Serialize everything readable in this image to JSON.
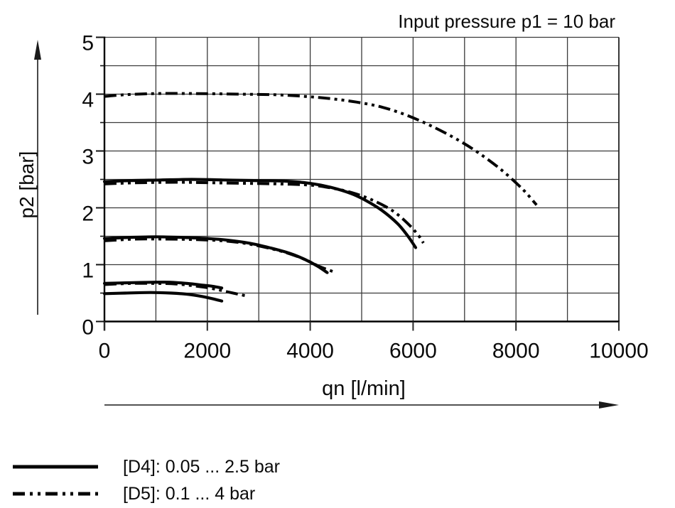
{
  "chart_data": {
    "type": "line",
    "title": "Input pressure p1 = 10 bar",
    "xlabel": "qn [l/min]",
    "ylabel": "p2 [bar]",
    "xlim": [
      0,
      10000
    ],
    "ylim": [
      0,
      5
    ],
    "x_major_ticks": [
      0,
      2000,
      4000,
      6000,
      8000,
      10000
    ],
    "x_minor_step": 1000,
    "y_major_ticks": [
      0,
      1,
      2,
      3,
      4,
      5
    ],
    "y_minor_step": 0.5,
    "grid": "on, every 1000 l/min and 0.5 bar",
    "legend_position": "below-left",
    "line_color": "#050505",
    "series": [
      {
        "name": "D4 set 2.5 bar",
        "group": "D4",
        "style": "solid",
        "points": [
          [
            0,
            2.46
          ],
          [
            500,
            2.48
          ],
          [
            1100,
            2.49
          ],
          [
            1700,
            2.5
          ],
          [
            2300,
            2.49
          ],
          [
            2900,
            2.48
          ],
          [
            3500,
            2.47
          ],
          [
            4000,
            2.43
          ],
          [
            4400,
            2.36
          ],
          [
            4800,
            2.25
          ],
          [
            5100,
            2.12
          ],
          [
            5400,
            1.95
          ],
          [
            5700,
            1.72
          ],
          [
            5900,
            1.5
          ],
          [
            6050,
            1.3
          ]
        ]
      },
      {
        "name": "D4 set 1.45 bar",
        "group": "D4",
        "style": "solid",
        "points": [
          [
            0,
            1.46
          ],
          [
            500,
            1.48
          ],
          [
            1000,
            1.49
          ],
          [
            1500,
            1.48
          ],
          [
            2000,
            1.46
          ],
          [
            2400,
            1.43
          ],
          [
            2800,
            1.38
          ],
          [
            3200,
            1.3
          ],
          [
            3600,
            1.2
          ],
          [
            3900,
            1.09
          ],
          [
            4150,
            0.97
          ],
          [
            4330,
            0.86
          ]
        ]
      },
      {
        "name": "D4 set 0.68 bar",
        "group": "D4",
        "style": "solid",
        "points": [
          [
            0,
            0.67
          ],
          [
            400,
            0.68
          ],
          [
            900,
            0.69
          ],
          [
            1300,
            0.69
          ],
          [
            1600,
            0.67
          ],
          [
            1900,
            0.64
          ],
          [
            2100,
            0.62
          ],
          [
            2280,
            0.59
          ]
        ]
      },
      {
        "name": "D4 set 0.5 bar",
        "group": "D4",
        "style": "solid",
        "points": [
          [
            0,
            0.49
          ],
          [
            400,
            0.5
          ],
          [
            900,
            0.51
          ],
          [
            1300,
            0.5
          ],
          [
            1600,
            0.48
          ],
          [
            1900,
            0.44
          ],
          [
            2150,
            0.39
          ],
          [
            2280,
            0.36
          ]
        ]
      },
      {
        "name": "D5 set 4 bar",
        "group": "D5",
        "style": "dashdotdot",
        "points": [
          [
            0,
            3.96
          ],
          [
            400,
            3.99
          ],
          [
            1000,
            4.01
          ],
          [
            1800,
            4.01
          ],
          [
            2600,
            4.0
          ],
          [
            3300,
            3.99
          ],
          [
            3900,
            3.96
          ],
          [
            4400,
            3.92
          ],
          [
            4900,
            3.86
          ],
          [
            5400,
            3.77
          ],
          [
            5900,
            3.62
          ],
          [
            6400,
            3.42
          ],
          [
            6900,
            3.18
          ],
          [
            7300,
            2.95
          ],
          [
            7700,
            2.68
          ],
          [
            8000,
            2.44
          ],
          [
            8200,
            2.26
          ],
          [
            8400,
            2.05
          ]
        ]
      },
      {
        "name": "D5 set 2.4 bar",
        "group": "D5",
        "style": "dashdotdot",
        "points": [
          [
            0,
            2.42
          ],
          [
            600,
            2.44
          ],
          [
            1400,
            2.45
          ],
          [
            2100,
            2.44
          ],
          [
            2800,
            2.43
          ],
          [
            3400,
            2.42
          ],
          [
            4000,
            2.4
          ],
          [
            4400,
            2.35
          ],
          [
            4800,
            2.27
          ],
          [
            5200,
            2.14
          ],
          [
            5600,
            1.95
          ],
          [
            5900,
            1.72
          ],
          [
            6100,
            1.52
          ],
          [
            6200,
            1.38
          ]
        ]
      },
      {
        "name": "D5 set 1.44 bar",
        "group": "D5",
        "style": "dashdotdot",
        "points": [
          [
            0,
            1.42
          ],
          [
            600,
            1.45
          ],
          [
            1200,
            1.45
          ],
          [
            1800,
            1.44
          ],
          [
            2300,
            1.42
          ],
          [
            2700,
            1.38
          ],
          [
            3100,
            1.31
          ],
          [
            3500,
            1.22
          ],
          [
            3900,
            1.09
          ],
          [
            4200,
            0.96
          ],
          [
            4470,
            0.87
          ]
        ]
      },
      {
        "name": "D5 set 0.65 bar",
        "group": "D5",
        "style": "dashdotdot",
        "points": [
          [
            0,
            0.65
          ],
          [
            500,
            0.67
          ],
          [
            1000,
            0.67
          ],
          [
            1400,
            0.66
          ],
          [
            1800,
            0.62
          ],
          [
            2100,
            0.58
          ],
          [
            2400,
            0.52
          ],
          [
            2760,
            0.45
          ]
        ]
      }
    ]
  },
  "legend": {
    "items": [
      {
        "label": "[D4]: 0.05 ... 2.5 bar",
        "style": "solid"
      },
      {
        "label": "[D5]: 0.1 ... 4 bar",
        "style": "dashdotdot"
      }
    ]
  },
  "colors": {
    "background": "#ffffff",
    "text": "#0a0a0a",
    "line": "#050505",
    "grid": "#3a3a3a",
    "border": "#000000"
  }
}
